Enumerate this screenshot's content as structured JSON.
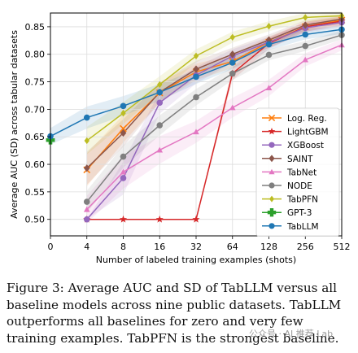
{
  "chart_data": {
    "type": "line",
    "x": [
      0,
      4,
      8,
      16,
      32,
      64,
      128,
      256,
      512
    ],
    "x_tick_labels": [
      "0",
      "4",
      "8",
      "16",
      "32",
      "64",
      "128",
      "256",
      "512"
    ],
    "xlabel": "Number of labeled training examples (shots)",
    "ylabel": "Average AUC (SD) across tabular datasets",
    "ylim": [
      0.47,
      0.875
    ],
    "y_ticks": [
      0.5,
      0.55,
      0.6,
      0.65,
      0.7,
      0.75,
      0.8,
      0.85
    ],
    "y_tick_labels": [
      "0.50",
      "0.55",
      "0.60",
      "0.65",
      "0.70",
      "0.75",
      "0.80",
      "0.85"
    ],
    "grid": true,
    "legend_position": "bottom-right",
    "series": [
      {
        "name": "Log. Reg.",
        "color": "#ff7f0e",
        "marker": "x",
        "values": [
          null,
          0.59,
          0.665,
          0.73,
          0.768,
          0.787,
          0.822,
          0.85,
          0.862
        ],
        "sd": [
          null,
          0.03,
          0.025,
          0.018,
          0.015,
          0.012,
          0.01,
          0.009,
          0.008
        ]
      },
      {
        "name": "LightGBM",
        "color": "#d62728",
        "marker": "star",
        "values": [
          null,
          0.5,
          0.5,
          0.5,
          0.5,
          0.765,
          0.82,
          0.85,
          0.86
        ],
        "sd": [
          null,
          0,
          0,
          0,
          0,
          0.012,
          0.01,
          0.009,
          0.008
        ]
      },
      {
        "name": "XGBoost",
        "color": "#9467bd",
        "marker": "circle",
        "values": [
          null,
          0.5,
          0.575,
          0.712,
          0.762,
          0.797,
          0.822,
          0.848,
          0.858
        ],
        "sd": [
          null,
          0,
          0.03,
          0.02,
          0.015,
          0.012,
          0.01,
          0.009,
          0.008
        ]
      },
      {
        "name": "SAINT",
        "color": "#8c564b",
        "marker": "diamond",
        "values": [
          null,
          0.593,
          0.657,
          0.731,
          0.773,
          0.8,
          0.826,
          0.853,
          0.864
        ],
        "sd": [
          null,
          0.03,
          0.025,
          0.018,
          0.015,
          0.012,
          0.01,
          0.009,
          0.008
        ]
      },
      {
        "name": "TabNet",
        "color": "#e377c2",
        "marker": "triangle",
        "values": [
          null,
          0.518,
          0.586,
          0.626,
          0.659,
          0.703,
          0.739,
          0.79,
          0.817
        ],
        "sd": [
          null,
          0.025,
          0.03,
          0.025,
          0.02,
          0.018,
          0.015,
          0.012,
          0.01
        ]
      },
      {
        "name": "NODE",
        "color": "#7f7f7f",
        "marker": "circle",
        "values": [
          null,
          0.532,
          0.614,
          0.671,
          0.722,
          0.765,
          0.799,
          0.815,
          0.835
        ],
        "sd": [
          null,
          0.02,
          0.02,
          0.018,
          0.015,
          0.012,
          0.01,
          0.009,
          0.008
        ]
      },
      {
        "name": "TabPFN",
        "color": "#bcbd22",
        "marker": "diamond-thin",
        "values": [
          null,
          0.643,
          0.693,
          0.745,
          0.797,
          0.831,
          0.851,
          0.867,
          0.87
        ],
        "sd": [
          null,
          0.025,
          0.02,
          0.015,
          0.012,
          0.01,
          0.009,
          0.008,
          0.008
        ]
      },
      {
        "name": "GPT-3",
        "color": "#2ca02c",
        "marker": "cross",
        "values": [
          0.644,
          null,
          null,
          null,
          null,
          null,
          null,
          null,
          null
        ],
        "sd": [
          0,
          null,
          null,
          null,
          null,
          null,
          null,
          null,
          null
        ]
      },
      {
        "name": "TabLLM",
        "color": "#1f77b4",
        "marker": "circle",
        "values": [
          0.651,
          0.685,
          0.706,
          0.731,
          0.759,
          0.785,
          0.818,
          0.836,
          0.845
        ],
        "sd": [
          0.015,
          0.02,
          0.018,
          0.015,
          0.013,
          0.012,
          0.01,
          0.009,
          0.008
        ]
      }
    ]
  },
  "caption": {
    "text": "Figure 3: Average AUC and SD of TabLLM versus all baseline models across nine public datasets. TabLLM outperforms all baselines for zero and very few training examples. TabPFN is the strongest baseline."
  },
  "watermark": {
    "text": "公众号 · AI 推荐 Lab"
  }
}
